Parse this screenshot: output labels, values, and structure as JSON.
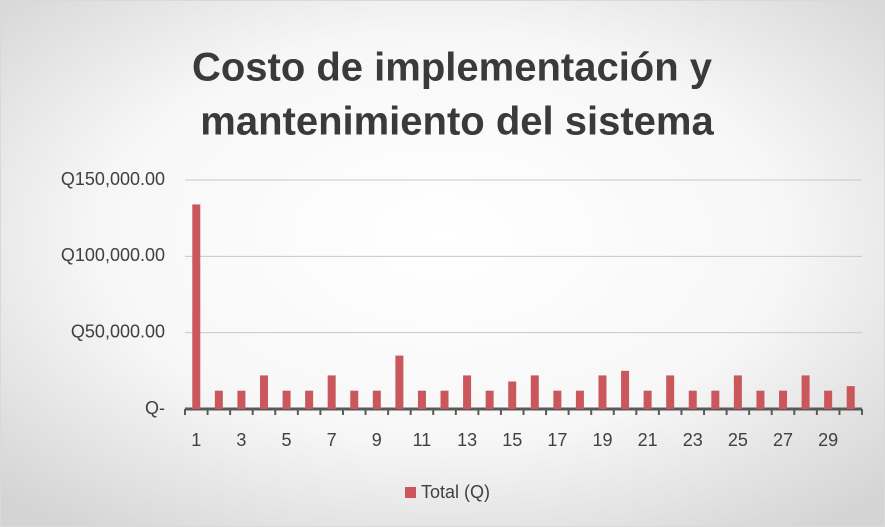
{
  "chart_data": {
    "type": "bar",
    "title": [
      "Costo de implementación  y",
      "mantenimiento del sistema"
    ],
    "categories": [
      "1",
      null,
      "3",
      null,
      "5",
      null,
      "7",
      null,
      "9",
      null,
      "11",
      null,
      "13",
      null,
      "15",
      null,
      "17",
      null,
      "19",
      null,
      "21",
      null,
      "23",
      null,
      "25",
      null,
      "27",
      null,
      "29",
      null
    ],
    "series": [
      {
        "name": "Total (Q)",
        "color": "#c9575c",
        "values": [
          134000,
          12000,
          12000,
          22000,
          12000,
          12000,
          22000,
          12000,
          12000,
          35000,
          12000,
          12000,
          22000,
          12000,
          18000,
          22000,
          12000,
          12000,
          22000,
          25000,
          12000,
          22000,
          12000,
          12000,
          22000,
          12000,
          12000,
          22000,
          12000,
          15000
        ]
      }
    ],
    "ylim": [
      0,
      150000
    ],
    "yticks": [
      {
        "value": 0,
        "label": "Q-"
      },
      {
        "value": 50000,
        "label": "Q50,000.00"
      },
      {
        "value": 100000,
        "label": "Q100,000.00"
      },
      {
        "value": 150000,
        "label": "Q150,000.00"
      }
    ],
    "grid": true,
    "legend": "bottom"
  }
}
